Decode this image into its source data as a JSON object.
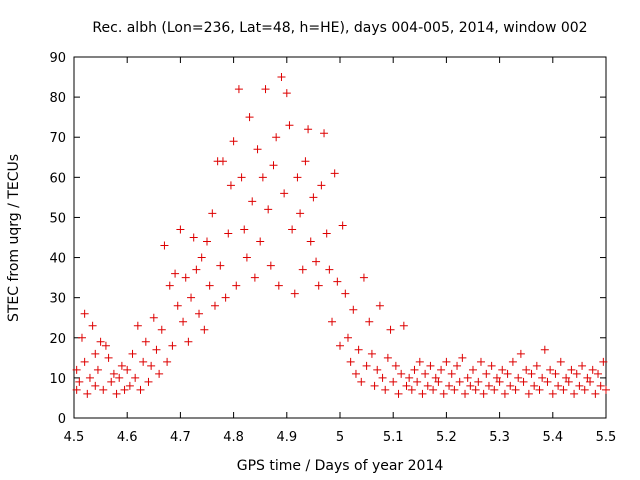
{
  "chart_data": {
    "type": "scatter",
    "title": "Rec. albh (Lon=236, Lat=48, h=HE), days 004-005, 2014, window 002",
    "xlabel": "GPS time / Days of year 2014",
    "ylabel": "STEC from uqrg / TECUs",
    "xlim": [
      4.5,
      5.5
    ],
    "ylim": [
      0,
      90
    ],
    "xticks": [
      "4.5",
      "4.6",
      "4.7",
      "4.8",
      "4.9",
      "5",
      "5.1",
      "5.2",
      "5.3",
      "5.4",
      "5.5"
    ],
    "yticks": [
      "0",
      "10",
      "20",
      "30",
      "40",
      "50",
      "60",
      "70",
      "80",
      "90"
    ],
    "grid": false,
    "legend": "none",
    "marker": "plus",
    "color": "#dd0000",
    "points": [
      [
        4.505,
        7
      ],
      [
        4.505,
        12
      ],
      [
        4.51,
        9
      ],
      [
        4.515,
        20
      ],
      [
        4.52,
        26
      ],
      [
        4.52,
        14
      ],
      [
        4.525,
        6
      ],
      [
        4.53,
        10
      ],
      [
        4.535,
        23
      ],
      [
        4.54,
        16
      ],
      [
        4.54,
        8
      ],
      [
        4.545,
        12
      ],
      [
        4.55,
        19
      ],
      [
        4.555,
        7
      ],
      [
        4.56,
        18
      ],
      [
        4.565,
        15
      ],
      [
        4.57,
        9
      ],
      [
        4.575,
        11
      ],
      [
        4.58,
        6
      ],
      [
        4.585,
        10
      ],
      [
        4.59,
        13
      ],
      [
        4.595,
        7
      ],
      [
        4.6,
        12
      ],
      [
        4.605,
        8
      ],
      [
        4.61,
        16
      ],
      [
        4.615,
        10
      ],
      [
        4.62,
        23
      ],
      [
        4.625,
        7
      ],
      [
        4.63,
        14
      ],
      [
        4.635,
        19
      ],
      [
        4.64,
        9
      ],
      [
        4.645,
        13
      ],
      [
        4.65,
        25
      ],
      [
        4.655,
        17
      ],
      [
        4.66,
        11
      ],
      [
        4.665,
        22
      ],
      [
        4.67,
        43
      ],
      [
        4.675,
        14
      ],
      [
        4.68,
        33
      ],
      [
        4.685,
        18
      ],
      [
        4.69,
        36
      ],
      [
        4.695,
        28
      ],
      [
        4.7,
        47
      ],
      [
        4.705,
        24
      ],
      [
        4.71,
        35
      ],
      [
        4.715,
        19
      ],
      [
        4.72,
        30
      ],
      [
        4.725,
        45
      ],
      [
        4.73,
        37
      ],
      [
        4.735,
        26
      ],
      [
        4.74,
        40
      ],
      [
        4.745,
        22
      ],
      [
        4.75,
        44
      ],
      [
        4.755,
        33
      ],
      [
        4.76,
        51
      ],
      [
        4.765,
        28
      ],
      [
        4.77,
        64
      ],
      [
        4.775,
        38
      ],
      [
        4.78,
        64
      ],
      [
        4.785,
        30
      ],
      [
        4.79,
        46
      ],
      [
        4.795,
        58
      ],
      [
        4.8,
        69
      ],
      [
        4.805,
        33
      ],
      [
        4.81,
        82
      ],
      [
        4.815,
        60
      ],
      [
        4.82,
        47
      ],
      [
        4.825,
        40
      ],
      [
        4.83,
        75
      ],
      [
        4.835,
        54
      ],
      [
        4.84,
        35
      ],
      [
        4.845,
        67
      ],
      [
        4.85,
        44
      ],
      [
        4.855,
        60
      ],
      [
        4.86,
        82
      ],
      [
        4.865,
        52
      ],
      [
        4.87,
        38
      ],
      [
        4.875,
        63
      ],
      [
        4.88,
        70
      ],
      [
        4.885,
        33
      ],
      [
        4.89,
        85
      ],
      [
        4.895,
        56
      ],
      [
        4.9,
        81
      ],
      [
        4.905,
        73
      ],
      [
        4.91,
        47
      ],
      [
        4.915,
        31
      ],
      [
        4.92,
        60
      ],
      [
        4.925,
        51
      ],
      [
        4.93,
        37
      ],
      [
        4.935,
        64
      ],
      [
        4.94,
        72
      ],
      [
        4.945,
        44
      ],
      [
        4.95,
        55
      ],
      [
        4.955,
        39
      ],
      [
        4.96,
        33
      ],
      [
        4.965,
        58
      ],
      [
        4.97,
        71
      ],
      [
        4.975,
        46
      ],
      [
        4.98,
        37
      ],
      [
        4.985,
        24
      ],
      [
        4.99,
        61
      ],
      [
        4.995,
        34
      ],
      [
        5.0,
        18
      ],
      [
        5.005,
        48
      ],
      [
        5.01,
        31
      ],
      [
        5.015,
        20
      ],
      [
        5.02,
        14
      ],
      [
        5.025,
        27
      ],
      [
        5.03,
        11
      ],
      [
        5.035,
        17
      ],
      [
        5.04,
        9
      ],
      [
        5.045,
        35
      ],
      [
        5.05,
        13
      ],
      [
        5.055,
        24
      ],
      [
        5.06,
        16
      ],
      [
        5.065,
        8
      ],
      [
        5.07,
        12
      ],
      [
        5.075,
        28
      ],
      [
        5.08,
        10
      ],
      [
        5.085,
        7
      ],
      [
        5.09,
        15
      ],
      [
        5.095,
        22
      ],
      [
        5.1,
        9
      ],
      [
        5.105,
        13
      ],
      [
        5.11,
        6
      ],
      [
        5.115,
        11
      ],
      [
        5.12,
        23
      ],
      [
        5.125,
        8
      ],
      [
        5.13,
        10
      ],
      [
        5.135,
        7
      ],
      [
        5.14,
        12
      ],
      [
        5.145,
        9
      ],
      [
        5.15,
        14
      ],
      [
        5.155,
        6
      ],
      [
        5.16,
        11
      ],
      [
        5.165,
        8
      ],
      [
        5.17,
        13
      ],
      [
        5.175,
        7
      ],
      [
        5.18,
        10
      ],
      [
        5.185,
        9
      ],
      [
        5.19,
        12
      ],
      [
        5.195,
        6
      ],
      [
        5.2,
        14
      ],
      [
        5.205,
        8
      ],
      [
        5.21,
        11
      ],
      [
        5.215,
        7
      ],
      [
        5.22,
        13
      ],
      [
        5.225,
        9
      ],
      [
        5.23,
        15
      ],
      [
        5.235,
        6
      ],
      [
        5.24,
        10
      ],
      [
        5.245,
        8
      ],
      [
        5.25,
        12
      ],
      [
        5.255,
        7
      ],
      [
        5.26,
        9
      ],
      [
        5.265,
        14
      ],
      [
        5.27,
        6
      ],
      [
        5.275,
        11
      ],
      [
        5.28,
        8
      ],
      [
        5.285,
        13
      ],
      [
        5.29,
        7
      ],
      [
        5.295,
        10
      ],
      [
        5.3,
        9
      ],
      [
        5.305,
        12
      ],
      [
        5.31,
        6
      ],
      [
        5.315,
        11
      ],
      [
        5.32,
        8
      ],
      [
        5.325,
        14
      ],
      [
        5.33,
        7
      ],
      [
        5.335,
        10
      ],
      [
        5.34,
        16
      ],
      [
        5.345,
        9
      ],
      [
        5.35,
        12
      ],
      [
        5.355,
        6
      ],
      [
        5.36,
        11
      ],
      [
        5.365,
        8
      ],
      [
        5.37,
        13
      ],
      [
        5.375,
        7
      ],
      [
        5.38,
        10
      ],
      [
        5.385,
        17
      ],
      [
        5.39,
        9
      ],
      [
        5.395,
        12
      ],
      [
        5.4,
        6
      ],
      [
        5.405,
        11
      ],
      [
        5.41,
        8
      ],
      [
        5.415,
        14
      ],
      [
        5.42,
        7
      ],
      [
        5.425,
        10
      ],
      [
        5.43,
        9
      ],
      [
        5.435,
        12
      ],
      [
        5.44,
        6
      ],
      [
        5.445,
        11
      ],
      [
        5.45,
        8
      ],
      [
        5.455,
        13
      ],
      [
        5.46,
        7
      ],
      [
        5.465,
        10
      ],
      [
        5.47,
        9
      ],
      [
        5.475,
        12
      ],
      [
        5.48,
        6
      ],
      [
        5.485,
        11
      ],
      [
        5.49,
        8
      ],
      [
        5.495,
        14
      ],
      [
        5.5,
        7
      ]
    ]
  }
}
